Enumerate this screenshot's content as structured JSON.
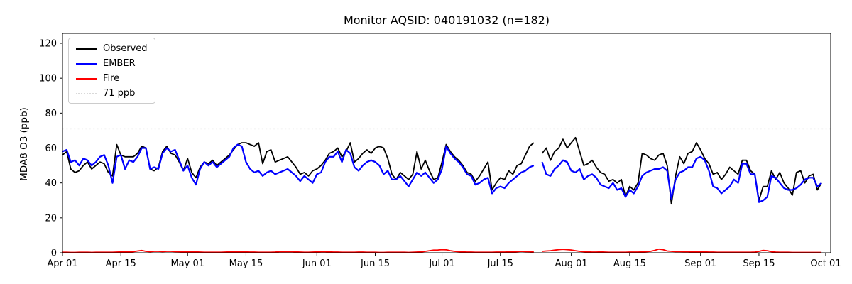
{
  "chart_data": {
    "type": "line",
    "title": "Monitor AQSID: 040191032 (n=182)",
    "xlabel": "",
    "ylabel": "MDA8 O3 (ppb)",
    "ylim": [
      0,
      125.7
    ],
    "yticks": [
      0,
      20,
      40,
      60,
      80,
      100,
      120
    ],
    "x_axis_max_days": 184.2,
    "x_start_date": "Apr 01",
    "x_end_date": "Sep 30",
    "grid": false,
    "legend_position": "upper left",
    "xticks": [
      {
        "day": 0,
        "label": "Apr 01"
      },
      {
        "day": 14,
        "label": "Apr 15"
      },
      {
        "day": 30,
        "label": "May 01"
      },
      {
        "day": 44,
        "label": "May 15"
      },
      {
        "day": 61,
        "label": "Jun 01"
      },
      {
        "day": 75,
        "label": "Jun 15"
      },
      {
        "day": 91,
        "label": "Jul 01"
      },
      {
        "day": 105,
        "label": "Jul 15"
      },
      {
        "day": 122,
        "label": "Aug 01"
      },
      {
        "day": 136,
        "label": "Aug 15"
      },
      {
        "day": 153,
        "label": "Sep 01"
      },
      {
        "day": 167,
        "label": "Sep 15"
      },
      {
        "day": 183,
        "label": "Oct 01"
      }
    ],
    "threshold": {
      "label": "71 ppb",
      "value": 71,
      "color": "#d9d9d9",
      "style": "dotted"
    },
    "missing_day_note": "one missing daily value (~Jul 24) producing the line gap; n=182 of 183 days",
    "series": [
      {
        "name": "Observed",
        "color": "#000000",
        "values": [
          56,
          58,
          48,
          46,
          47,
          50,
          52,
          48,
          50,
          52,
          51,
          46,
          44,
          62,
          56,
          55,
          55,
          55,
          57,
          61,
          60,
          48,
          47,
          49,
          58,
          61,
          57,
          56,
          52,
          47,
          54,
          46,
          43,
          49,
          52,
          51,
          53,
          50,
          52,
          54,
          56,
          59,
          62,
          63,
          63,
          62,
          61,
          63,
          51,
          58,
          59,
          52,
          53,
          54,
          55,
          52,
          49,
          45,
          46,
          44,
          47,
          48,
          50,
          53,
          57,
          58,
          60,
          55,
          58,
          63,
          52,
          54,
          57,
          59,
          57,
          60,
          61,
          60,
          54,
          45,
          42,
          46,
          44,
          42,
          45,
          58,
          48,
          53,
          47,
          42,
          43,
          52,
          62,
          58,
          55,
          53,
          50,
          46,
          45,
          41,
          44,
          48,
          52,
          36,
          40,
          43,
          42,
          47,
          45,
          50,
          51,
          56,
          61,
          63,
          null,
          57,
          60,
          53,
          58,
          60,
          65,
          60,
          63,
          66,
          58,
          50,
          51,
          53,
          49,
          46,
          45,
          41,
          42,
          40,
          42,
          32,
          38,
          36,
          40,
          57,
          56,
          54,
          53,
          56,
          57,
          50,
          28,
          44,
          55,
          51,
          57,
          58,
          63,
          59,
          54,
          51,
          45,
          46,
          42,
          45,
          49,
          47,
          45,
          53,
          53,
          47,
          45,
          30,
          38,
          38,
          47,
          42,
          46,
          40,
          37,
          33,
          46,
          47,
          40,
          44,
          45,
          36,
          40
        ]
      },
      {
        "name": "EMBER",
        "color": "#0000ff",
        "values": [
          58,
          59,
          52,
          53,
          50,
          54,
          53,
          50,
          52,
          55,
          56,
          50,
          40,
          55,
          56,
          48,
          53,
          52,
          55,
          60,
          60,
          48,
          49,
          48,
          57,
          60,
          58,
          59,
          53,
          47,
          50,
          43,
          39,
          48,
          52,
          50,
          52,
          49,
          51,
          53,
          55,
          60,
          62,
          61,
          52,
          48,
          46,
          47,
          44,
          46,
          47,
          45,
          46,
          47,
          48,
          46,
          44,
          41,
          44,
          42,
          40,
          45,
          46,
          52,
          55,
          55,
          58,
          52,
          59,
          57,
          49,
          47,
          50,
          52,
          53,
          52,
          50,
          45,
          47,
          42,
          42,
          44,
          41,
          38,
          42,
          46,
          44,
          46,
          43,
          40,
          42,
          48,
          61,
          57,
          54,
          52,
          49,
          45,
          44,
          39,
          40,
          42,
          43,
          34,
          37,
          38,
          37,
          40,
          42,
          44,
          46,
          47,
          49,
          50,
          null,
          52,
          45,
          44,
          48,
          50,
          53,
          52,
          47,
          46,
          48,
          42,
          44,
          45,
          43,
          39,
          38,
          37,
          40,
          36,
          37,
          32,
          36,
          34,
          38,
          44,
          46,
          47,
          48,
          48,
          49,
          47,
          31,
          42,
          46,
          47,
          49,
          49,
          54,
          55,
          53,
          47,
          38,
          37,
          34,
          36,
          38,
          42,
          40,
          51,
          51,
          45,
          45,
          29,
          30,
          32,
          44,
          43,
          40,
          37,
          36,
          36,
          37,
          39,
          42,
          43,
          43,
          38,
          40
        ]
      },
      {
        "name": "Fire",
        "color": "#ff0000",
        "values": [
          0.3,
          0.3,
          0.2,
          0.2,
          0.3,
          0.3,
          0.3,
          0.2,
          0.3,
          0.3,
          0.3,
          0.3,
          0.3,
          0.4,
          0.5,
          0.5,
          0.5,
          0.6,
          1.0,
          1.3,
          0.8,
          0.6,
          0.8,
          0.8,
          0.7,
          0.8,
          0.8,
          0.7,
          0.6,
          0.5,
          0.5,
          0.6,
          0.5,
          0.4,
          0.3,
          0.3,
          0.3,
          0.3,
          0.3,
          0.4,
          0.5,
          0.6,
          0.5,
          0.6,
          0.5,
          0.4,
          0.4,
          0.3,
          0.3,
          0.3,
          0.3,
          0.4,
          0.6,
          0.7,
          0.6,
          0.7,
          0.5,
          0.4,
          0.3,
          0.3,
          0.4,
          0.5,
          0.6,
          0.6,
          0.5,
          0.4,
          0.4,
          0.3,
          0.3,
          0.3,
          0.3,
          0.4,
          0.4,
          0.3,
          0.3,
          0.3,
          0.2,
          0.2,
          0.3,
          0.3,
          0.3,
          0.3,
          0.3,
          0.2,
          0.3,
          0.4,
          0.5,
          0.8,
          1.2,
          1.5,
          1.6,
          1.8,
          1.7,
          1.2,
          0.8,
          0.6,
          0.5,
          0.4,
          0.4,
          0.3,
          0.3,
          0.3,
          0.3,
          0.3,
          0.4,
          0.4,
          0.4,
          0.5,
          0.5,
          0.6,
          0.8,
          0.7,
          0.6,
          0.5,
          null,
          0.8,
          1.0,
          1.2,
          1.5,
          1.8,
          2.0,
          1.8,
          1.6,
          1.2,
          0.8,
          0.6,
          0.5,
          0.4,
          0.4,
          0.5,
          0.4,
          0.3,
          0.3,
          0.3,
          0.3,
          0.3,
          0.4,
          0.4,
          0.4,
          0.5,
          0.6,
          0.8,
          1.4,
          2.1,
          1.8,
          1.0,
          0.8,
          0.7,
          0.7,
          0.6,
          0.6,
          0.5,
          0.5,
          0.5,
          0.5,
          0.4,
          0.4,
          0.3,
          0.3,
          0.3,
          0.3,
          0.3,
          0.3,
          0.3,
          0.3,
          0.3,
          0.4,
          0.8,
          1.4,
          1.2,
          0.6,
          0.4,
          0.3,
          0.3,
          0.3,
          0.2,
          0.2,
          0.2,
          0.2,
          0.2,
          0.2,
          0.2,
          0.2
        ]
      }
    ]
  }
}
